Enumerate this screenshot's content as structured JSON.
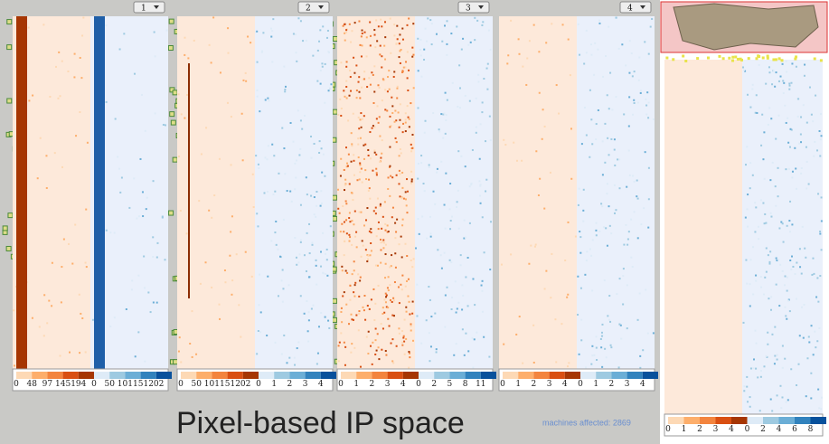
{
  "panels": [
    {
      "selector": "1",
      "orange_legend": [
        0,
        48,
        97,
        145,
        194
      ],
      "blue_legend": [
        0,
        50,
        101,
        151,
        202
      ]
    },
    {
      "selector": "2",
      "orange_legend": [
        0,
        50,
        101,
        151,
        202
      ],
      "blue_legend": [
        0,
        1,
        2,
        3,
        4
      ]
    },
    {
      "selector": "3",
      "orange_legend": [
        0,
        1,
        2,
        3,
        4
      ],
      "blue_legend": [
        0,
        2,
        5,
        8,
        11
      ]
    },
    {
      "selector": "4",
      "orange_legend": [
        0,
        1,
        2,
        3,
        4
      ],
      "blue_legend": [
        0,
        1,
        2,
        3,
        4
      ]
    }
  ],
  "side_panel": {
    "orange_legend": [
      0,
      1,
      2,
      3,
      4
    ],
    "blue_legend": [
      0,
      2,
      4,
      6,
      8
    ]
  },
  "caption": "Pixel-based IP space",
  "status_text": "machines affected: 2869"
}
